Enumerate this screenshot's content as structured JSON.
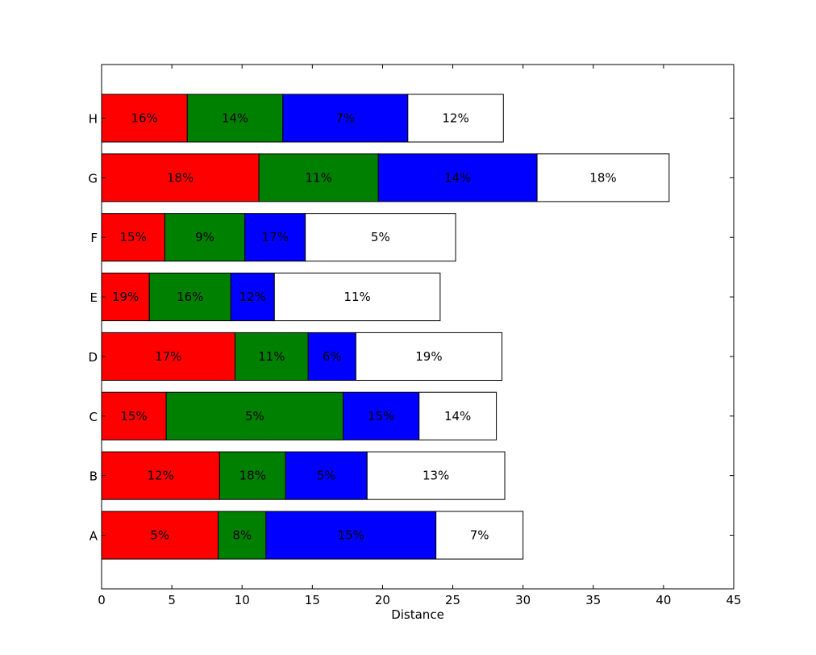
{
  "chart_data": {
    "type": "bar",
    "orientation": "horizontal",
    "stacked": true,
    "title": "",
    "xlabel": "Distance",
    "ylabel": "",
    "xlim": [
      0,
      45
    ],
    "x_ticks": [
      0,
      5,
      10,
      15,
      20,
      25,
      30,
      35,
      40,
      45
    ],
    "grid": false,
    "categories": [
      "A",
      "B",
      "C",
      "D",
      "E",
      "F",
      "G",
      "H"
    ],
    "series": [
      {
        "color": "#ff0000",
        "values": [
          8.3,
          8.4,
          4.6,
          9.5,
          3.4,
          4.5,
          11.2,
          6.1
        ],
        "labels": [
          "5%",
          "12%",
          "15%",
          "17%",
          "19%",
          "15%",
          "18%",
          "16%"
        ]
      },
      {
        "color": "#008000",
        "values": [
          3.4,
          4.7,
          12.6,
          5.2,
          5.8,
          5.7,
          8.5,
          6.8
        ],
        "labels": [
          "8%",
          "18%",
          "5%",
          "11%",
          "16%",
          "9%",
          "11%",
          "14%"
        ]
      },
      {
        "color": "#0000ff",
        "values": [
          12.1,
          5.8,
          5.4,
          3.4,
          3.1,
          4.3,
          11.3,
          8.9
        ],
        "labels": [
          "15%",
          "5%",
          "15%",
          "6%",
          "12%",
          "17%",
          "14%",
          "7%"
        ]
      },
      {
        "color": "#ffffff",
        "values": [
          6.2,
          9.8,
          5.5,
          10.4,
          11.8,
          10.7,
          9.4,
          6.8
        ],
        "labels": [
          "7%",
          "13%",
          "14%",
          "19%",
          "11%",
          "5%",
          "18%",
          "12%"
        ]
      }
    ]
  }
}
